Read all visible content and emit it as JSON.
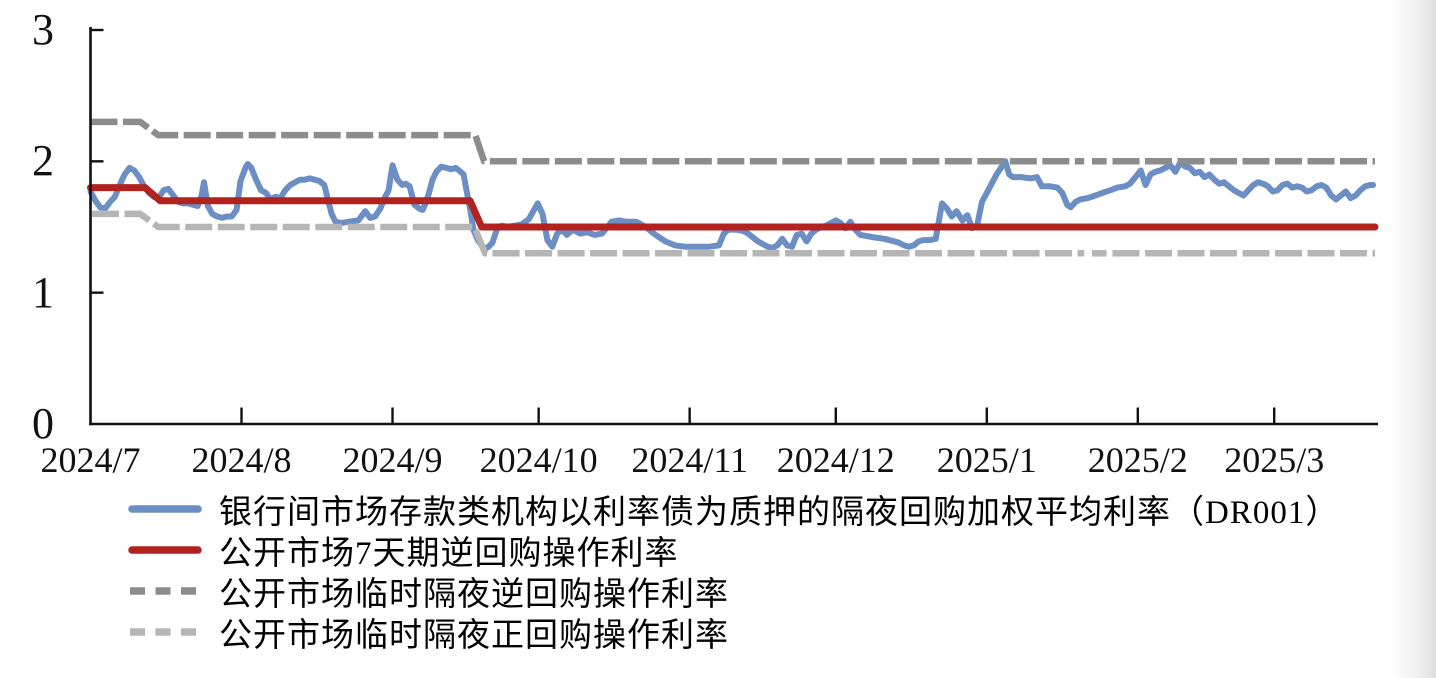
{
  "colors": {
    "dr001_blue": "#6b8ec4",
    "omo7d_red": "#b2231f",
    "temp_reverse_repo_gray": "#8c8c8c",
    "temp_repo_gray": "#b5b5b5",
    "axis": "#111111",
    "background": "#ffffff"
  },
  "chart_data": {
    "type": "line",
    "title": "",
    "xlabel": "",
    "ylabel": "",
    "x_axis": {
      "kind": "time",
      "start_date": "2024-07-01",
      "domain_days": [
        0,
        264
      ],
      "tick_days": [
        0,
        31,
        62,
        92,
        123,
        153,
        184,
        215,
        243
      ],
      "tick_labels": [
        "2024/7",
        "2024/8",
        "2024/9",
        "2024/10",
        "2024/11",
        "2024/12",
        "2025/1",
        "2025/2",
        "2025/3"
      ]
    },
    "y_axis": {
      "range": [
        0,
        3
      ],
      "tick_values": [
        0,
        1,
        2,
        3
      ],
      "tick_labels": [
        "0",
        "1",
        "2",
        "3"
      ]
    },
    "grid": false,
    "legend_position": "bottom-left",
    "series": [
      {
        "name": "银行间市场存款类机构以利率债为质押的隔夜回购加权平均利率（DR001）",
        "color": "#6b8ec4",
        "dash": false,
        "width": 6,
        "segments": [
          [
            [
              0,
              1.77
            ],
            [
              1,
              1.7
            ],
            [
              2,
              1.65
            ],
            [
              3,
              1.64
            ],
            [
              4,
              1.69
            ],
            [
              5,
              1.73
            ],
            [
              6,
              1.82
            ],
            [
              7,
              1.9
            ],
            [
              8,
              1.95
            ],
            [
              9,
              1.93
            ],
            [
              10,
              1.88
            ],
            [
              11,
              1.81
            ],
            [
              12,
              1.76
            ],
            [
              13,
              1.73
            ],
            [
              14,
              1.72
            ],
            [
              15,
              1.78
            ],
            [
              16,
              1.79
            ],
            [
              17,
              1.74
            ],
            [
              18,
              1.69
            ],
            [
              19,
              1.68
            ],
            [
              20,
              1.68
            ],
            [
              21,
              1.67
            ],
            [
              22,
              1.66
            ],
            [
              22.8,
              1.74
            ],
            [
              23.3,
              1.84
            ],
            [
              24.1,
              1.66
            ],
            [
              25,
              1.6
            ],
            [
              26,
              1.58
            ],
            [
              27,
              1.57
            ],
            [
              28,
              1.58
            ],
            [
              29,
              1.58
            ],
            [
              30,
              1.63
            ],
            [
              30.8,
              1.85
            ],
            [
              31.8,
              1.95
            ],
            [
              32.3,
              1.98
            ],
            [
              33,
              1.95
            ],
            [
              34,
              1.86
            ],
            [
              35,
              1.78
            ],
            [
              36,
              1.76
            ],
            [
              37,
              1.71
            ],
            [
              38,
              1.73
            ],
            [
              39,
              1.72
            ],
            [
              40,
              1.78
            ],
            [
              41,
              1.82
            ],
            [
              42,
              1.84
            ],
            [
              43,
              1.86
            ],
            [
              44,
              1.86
            ],
            [
              45,
              1.87
            ],
            [
              46,
              1.86
            ],
            [
              47,
              1.85
            ],
            [
              48,
              1.82
            ],
            [
              48.8,
              1.7
            ],
            [
              49.5,
              1.6
            ],
            [
              50.3,
              1.54
            ],
            [
              51.5,
              1.53
            ],
            [
              53,
              1.54
            ],
            [
              55,
              1.55
            ],
            [
              56.4,
              1.62
            ],
            [
              57.4,
              1.57
            ],
            [
              58.4,
              1.58
            ],
            [
              59.5,
              1.64
            ],
            [
              60.5,
              1.73
            ],
            [
              61.2,
              1.78
            ],
            [
              62,
              1.97
            ],
            [
              63,
              1.86
            ],
            [
              64,
              1.82
            ],
            [
              64.7,
              1.83
            ],
            [
              65.5,
              1.81
            ],
            [
              66.5,
              1.67
            ],
            [
              67.5,
              1.64
            ],
            [
              68.2,
              1.63
            ],
            [
              68.8,
              1.68
            ],
            [
              69.5,
              1.76
            ],
            [
              70.2,
              1.86
            ],
            [
              71,
              1.92
            ],
            [
              72,
              1.96
            ],
            [
              73,
              1.95
            ],
            [
              74,
              1.94
            ],
            [
              75,
              1.95
            ],
            [
              76,
              1.92
            ],
            [
              76.6,
              1.9
            ],
            [
              77.3,
              1.76
            ],
            [
              78,
              1.62
            ],
            [
              78.6,
              1.48
            ],
            [
              79.5,
              1.4
            ],
            [
              80.9,
              1.33
            ],
            [
              81.7,
              1.35
            ],
            [
              82.5,
              1.38
            ],
            [
              83.5,
              1.49
            ],
            [
              84.5,
              1.51
            ],
            [
              85.5,
              1.5
            ],
            [
              87,
              1.51
            ],
            [
              88.5,
              1.52
            ],
            [
              90,
              1.56
            ],
            [
              91.8,
              1.68
            ],
            [
              92.8,
              1.6
            ],
            [
              93.8,
              1.4
            ],
            [
              94.8,
              1.35
            ],
            [
              95.8,
              1.45
            ],
            [
              96.8,
              1.48
            ],
            [
              97.8,
              1.44
            ],
            [
              99,
              1.48
            ],
            [
              100.5,
              1.45
            ],
            [
              102,
              1.46
            ],
            [
              103.5,
              1.44
            ],
            [
              105,
              1.45
            ],
            [
              107,
              1.54
            ],
            [
              108.5,
              1.55
            ],
            [
              110,
              1.54
            ],
            [
              112,
              1.54
            ],
            [
              114,
              1.5
            ],
            [
              116,
              1.44
            ],
            [
              118,
              1.39
            ],
            [
              120,
              1.36
            ],
            [
              122,
              1.35
            ],
            [
              124.5,
              1.35
            ],
            [
              127,
              1.35
            ],
            [
              129,
              1.36
            ],
            [
              130,
              1.45
            ],
            [
              131,
              1.48
            ],
            [
              132.5,
              1.48
            ],
            [
              134,
              1.47
            ],
            [
              135,
              1.45
            ],
            [
              137,
              1.39
            ],
            [
              139,
              1.35
            ],
            [
              140,
              1.34
            ],
            [
              141,
              1.36
            ],
            [
              142,
              1.41
            ],
            [
              143,
              1.36
            ],
            [
              144,
              1.35
            ],
            [
              145,
              1.44
            ],
            [
              146,
              1.45
            ],
            [
              147,
              1.39
            ],
            [
              148,
              1.45
            ],
            [
              149,
              1.48
            ],
            [
              150,
              1.5
            ],
            [
              151,
              1.51
            ],
            [
              152,
              1.53
            ],
            [
              153,
              1.55
            ],
            [
              154,
              1.53
            ],
            [
              155,
              1.49
            ],
            [
              156,
              1.54
            ],
            [
              157,
              1.48
            ],
            [
              158,
              1.44
            ],
            [
              159.5,
              1.43
            ],
            [
              161,
              1.42
            ],
            [
              163,
              1.41
            ],
            [
              164,
              1.4
            ],
            [
              165,
              1.39
            ],
            [
              166,
              1.38
            ],
            [
              167,
              1.36
            ],
            [
              168,
              1.35
            ],
            [
              169,
              1.36
            ],
            [
              170,
              1.39
            ],
            [
              171,
              1.4
            ],
            [
              172.3,
              1.4
            ],
            [
              173.5,
              1.41
            ],
            [
              174.8,
              1.68
            ],
            [
              175.8,
              1.64
            ],
            [
              176.8,
              1.58
            ],
            [
              177.8,
              1.62
            ],
            [
              179,
              1.55
            ],
            [
              180,
              1.59
            ],
            [
              181,
              1.49
            ],
            [
              182,
              1.51
            ],
            [
              183,
              1.69
            ],
            [
              184,
              1.76
            ],
            [
              185,
              1.83
            ],
            [
              186,
              1.9
            ],
            [
              187.8,
              2.0
            ],
            [
              188.6,
              1.9
            ],
            [
              189.4,
              1.88
            ],
            [
              191,
              1.88
            ],
            [
              193,
              1.87
            ],
            [
              194.3,
              1.88
            ],
            [
              195.3,
              1.81
            ],
            [
              197,
              1.81
            ],
            [
              198.5,
              1.8
            ],
            [
              199.5,
              1.76
            ],
            [
              200.5,
              1.67
            ],
            [
              201.2,
              1.65
            ],
            [
              202.2,
              1.69
            ],
            [
              203.2,
              1.71
            ],
            [
              204.7,
              1.72
            ],
            [
              206.3,
              1.74
            ],
            [
              207.7,
              1.76
            ],
            [
              209.4,
              1.78
            ],
            [
              210.8,
              1.8
            ],
            [
              212.4,
              1.81
            ],
            [
              213.4,
              1.83
            ],
            [
              214.5,
              1.88
            ],
            [
              215.6,
              1.93
            ],
            [
              216.6,
              1.82
            ],
            [
              217.6,
              1.9
            ],
            [
              218.6,
              1.92
            ],
            [
              219.6,
              1.93
            ],
            [
              220.6,
              1.95
            ],
            [
              221.7,
              1.97
            ],
            [
              222.7,
              1.92
            ],
            [
              223.7,
              1.99
            ],
            [
              224.7,
              1.96
            ],
            [
              225.7,
              1.95
            ],
            [
              226.7,
              1.91
            ],
            [
              227.7,
              1.92
            ],
            [
              228.7,
              1.88
            ],
            [
              229.7,
              1.9
            ],
            [
              230.7,
              1.86
            ],
            [
              231.7,
              1.83
            ],
            [
              232.7,
              1.84
            ],
            [
              233.7,
              1.81
            ],
            [
              234.7,
              1.78
            ],
            [
              235.7,
              1.76
            ],
            [
              236.7,
              1.74
            ],
            [
              237.7,
              1.78
            ],
            [
              238.7,
              1.82
            ],
            [
              239.7,
              1.84
            ],
            [
              240.7,
              1.83
            ],
            [
              241.7,
              1.81
            ],
            [
              242.7,
              1.77
            ],
            [
              243.7,
              1.78
            ],
            [
              244.7,
              1.82
            ],
            [
              245.7,
              1.83
            ],
            [
              246.7,
              1.8
            ],
            [
              247.7,
              1.81
            ],
            [
              248.7,
              1.8
            ],
            [
              249.7,
              1.77
            ],
            [
              250.7,
              1.78
            ],
            [
              251.7,
              1.81
            ],
            [
              252.7,
              1.82
            ],
            [
              253.7,
              1.8
            ],
            [
              254.7,
              1.74
            ],
            [
              255.7,
              1.71
            ],
            [
              256.7,
              1.74
            ],
            [
              257.7,
              1.77
            ],
            [
              258.7,
              1.72
            ],
            [
              259.7,
              1.74
            ],
            [
              260.7,
              1.78
            ],
            [
              261.7,
              1.81
            ],
            [
              262.7,
              1.82
            ],
            [
              263.3,
              1.82
            ]
          ]
        ]
      },
      {
        "name": "公开市场7天期逆回购操作利率",
        "color": "#b2231f",
        "dash": false,
        "width": 7,
        "segments": [
          [
            [
              0,
              1.8
            ],
            [
              11.2,
              1.8
            ],
            [
              14.3,
              1.7
            ],
            [
              77.9,
              1.7
            ],
            [
              80.3,
              1.5
            ],
            [
              263.7,
              1.5
            ]
          ]
        ]
      },
      {
        "name": "公开市场临时隔夜逆回购操作利率",
        "color": "#8c8c8c",
        "dash": true,
        "width": 6.5,
        "segments": [
          [
            [
              0,
              2.3
            ],
            [
              10.2,
              2.3
            ],
            [
              13.9,
              2.2
            ],
            [
              79.0,
              2.2
            ],
            [
              80.8,
              2.0
            ],
            [
              204.0,
              2.0
            ]
          ],
          [
            [
              205.6,
              2.0
            ],
            [
              208.6,
              2.0
            ]
          ],
          [
            [
              209.8,
              2.0
            ],
            [
              263.7,
              2.0
            ]
          ]
        ]
      },
      {
        "name": "公开市场临时隔夜正回购操作利率",
        "color": "#b5b5b5",
        "dash": true,
        "width": 6.5,
        "segments": [
          [
            [
              0.3,
              1.6
            ],
            [
              10.2,
              1.6
            ],
            [
              13.9,
              1.5
            ],
            [
              78.8,
              1.5
            ],
            [
              81.0,
              1.3
            ],
            [
              204.0,
              1.3
            ]
          ],
          [
            [
              205.6,
              1.3
            ],
            [
              208.6,
              1.3
            ]
          ],
          [
            [
              209.8,
              1.3
            ],
            [
              263.7,
              1.3
            ]
          ]
        ]
      }
    ]
  }
}
